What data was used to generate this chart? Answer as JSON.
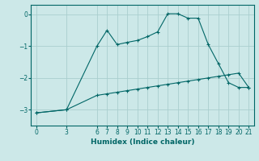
{
  "xlabel": "Humidex (Indice chaleur)",
  "bg_color": "#cce8e8",
  "grid_color": "#aacece",
  "line_color": "#006666",
  "xlim": [
    -0.5,
    21.5
  ],
  "ylim": [
    -3.5,
    0.3
  ],
  "xticks": [
    0,
    3,
    6,
    7,
    8,
    9,
    10,
    11,
    12,
    13,
    14,
    15,
    16,
    17,
    18,
    19,
    20,
    21
  ],
  "yticks": [
    0,
    -1,
    -2,
    -3
  ],
  "line1_x": [
    0,
    3,
    6,
    7,
    8,
    9,
    10,
    11,
    12,
    13,
    14,
    15,
    16,
    17,
    18,
    19,
    20,
    21
  ],
  "line1_y": [
    -3.1,
    -3.0,
    -1.0,
    -0.5,
    -0.95,
    -0.88,
    -0.82,
    -0.7,
    -0.55,
    0.02,
    0.02,
    -0.12,
    -0.12,
    -0.95,
    -1.55,
    -2.15,
    -2.3,
    -2.3
  ],
  "line2_x": [
    0,
    3,
    6,
    7,
    8,
    9,
    10,
    11,
    12,
    13,
    14,
    15,
    16,
    17,
    18,
    19,
    20,
    21
  ],
  "line2_y": [
    -3.1,
    -3.0,
    -2.55,
    -2.5,
    -2.45,
    -2.4,
    -2.35,
    -2.3,
    -2.25,
    -2.2,
    -2.15,
    -2.1,
    -2.05,
    -2.0,
    -1.95,
    -1.9,
    -1.85,
    -2.3
  ]
}
